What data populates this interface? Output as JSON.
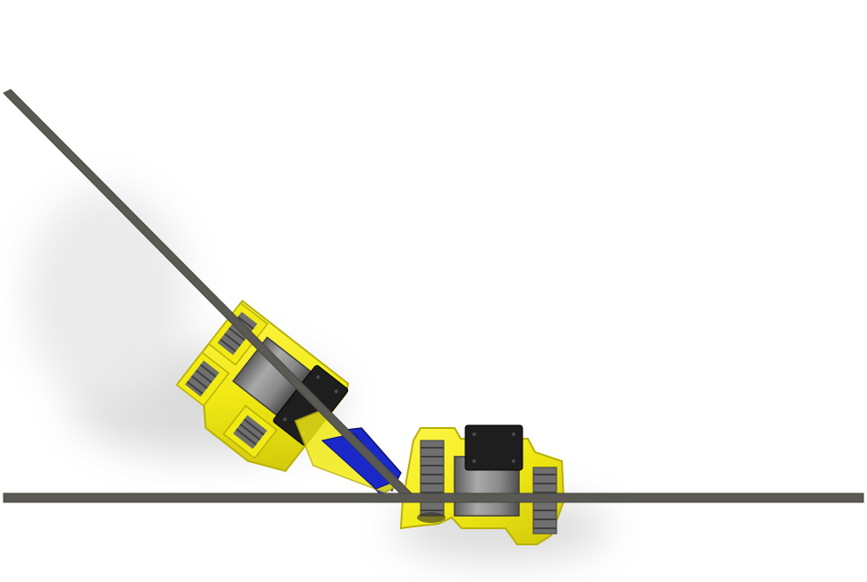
{
  "scene": {
    "background_color": "#ffffff",
    "shadow_color": "#9a9a9a",
    "rail_color": "#5a5954",
    "rail_edge_color": "#47463f",
    "body_color": "#f1ea14",
    "body_shade_color": "#b8b00a",
    "motor_body_color": "#808080",
    "motor_top_color": "#1e1e1e",
    "gear_color": "#6f6f6f",
    "belt_color": "#1a28c8"
  },
  "objects": {
    "floor_rail": {
      "label": "horizontal-rail"
    },
    "incline_rail": {
      "label": "diagonal-rail"
    },
    "rear_module": {
      "label": "climbing-robot-rear-module"
    },
    "front_module": {
      "label": "climbing-robot-front-module"
    },
    "hinge_link": {
      "label": "blue-linkage"
    }
  }
}
